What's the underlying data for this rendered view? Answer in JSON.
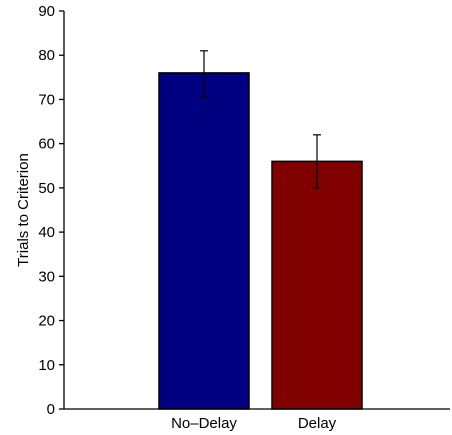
{
  "chart_data": {
    "type": "bar",
    "title": "",
    "xlabel": "",
    "ylabel": "Trials to Criterion",
    "ylim": [
      0,
      90
    ],
    "yticks": [
      0,
      10,
      20,
      30,
      40,
      50,
      60,
      70,
      80,
      90
    ],
    "categories": [
      "No–Delay",
      "Delay"
    ],
    "values": [
      76,
      56
    ],
    "error_low": [
      70.5,
      50
    ],
    "error_high": [
      81,
      62
    ],
    "colors": [
      "#000080",
      "#800000"
    ],
    "grid": false,
    "legend": "none"
  }
}
